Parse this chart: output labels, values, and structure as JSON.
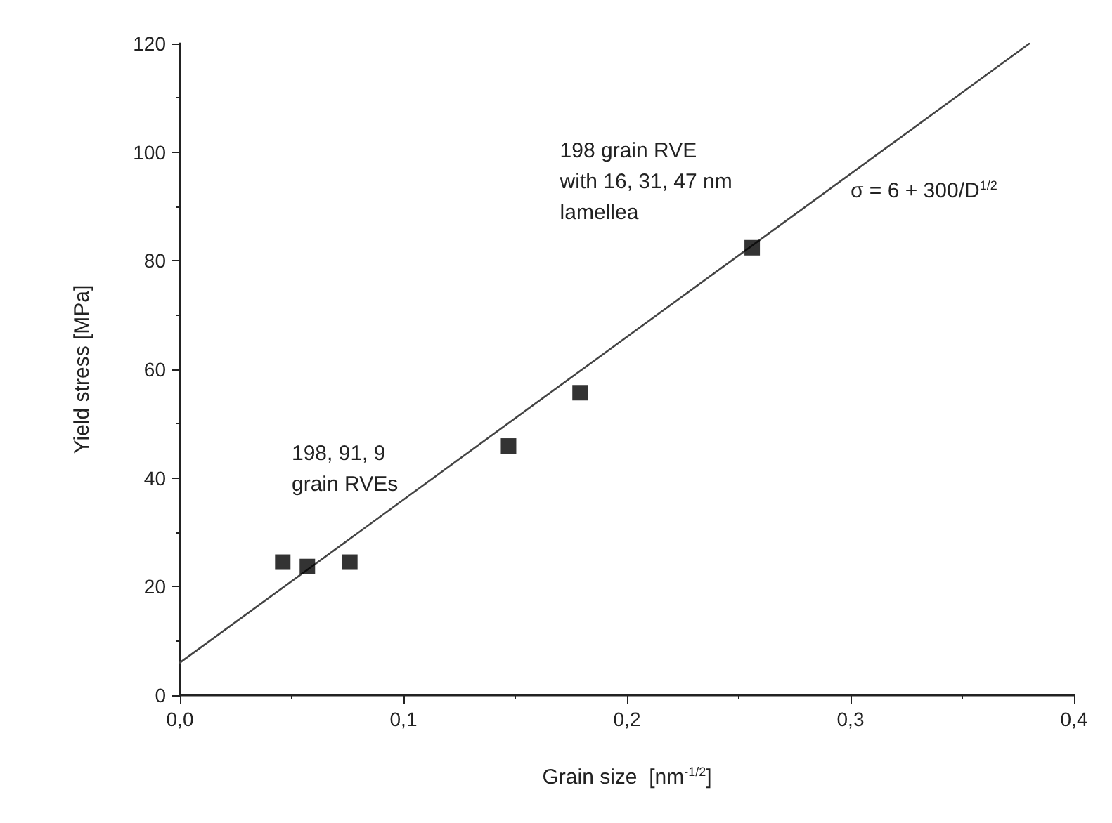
{
  "chart_data": {
    "type": "scatter",
    "xlabel": "Grain size  [nm$^{-1/2}$]",
    "ylabel": "Yield stress [MPa]",
    "xlim": [
      0,
      0.4
    ],
    "xticks": [
      {
        "value": 0,
        "label": "0,0"
      },
      {
        "value": 0.1,
        "label": "0,1"
      },
      {
        "value": 0.2,
        "label": "0,2"
      },
      {
        "value": 0.3,
        "label": "0,3"
      },
      {
        "value": 0.4,
        "label": "0,4"
      }
    ],
    "ylim": [
      0,
      120
    ],
    "yticks": [
      0,
      20,
      40,
      60,
      80,
      100,
      120
    ],
    "grid": false,
    "marker": "square",
    "series": [
      {
        "color": "#000000",
        "x": [
          0.046,
          0.057,
          0.076,
          0.147,
          0.179,
          0.256
        ],
        "values": [
          24.5,
          23.7,
          24.5,
          45.9,
          55.7,
          82.4
        ]
      },
      {
        "type": "line",
        "color": "#444444",
        "x": [
          0,
          0.38
        ],
        "values": [
          6,
          120
        ],
        "marker": "none",
        "line_style": "solid"
      }
    ],
    "annotations": [
      "198, 91, 9\ngrain RVEs",
      "198 grain RVE\nwith 16, 31, 47 nm\nlamellea",
      "σ = 6 + 300/D$^{1/2}$"
    ]
  }
}
